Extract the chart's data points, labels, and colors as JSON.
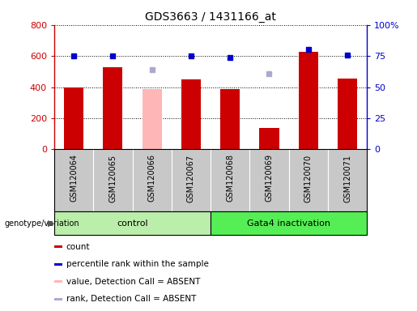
{
  "title": "GDS3663 / 1431166_at",
  "categories": [
    "GSM120064",
    "GSM120065",
    "GSM120066",
    "GSM120067",
    "GSM120068",
    "GSM120069",
    "GSM120070",
    "GSM120071"
  ],
  "count_values": [
    400,
    530,
    null,
    450,
    385,
    135,
    625,
    455
  ],
  "count_absent_values": [
    null,
    null,
    385,
    null,
    null,
    null,
    null,
    null
  ],
  "rank_values": [
    75,
    75,
    null,
    75,
    74,
    null,
    80,
    76
  ],
  "rank_absent_values": [
    null,
    null,
    64,
    null,
    null,
    61,
    null,
    null
  ],
  "control_indices": [
    0,
    1,
    2,
    3
  ],
  "gata4_indices": [
    4,
    5,
    6,
    7
  ],
  "control_label": "control",
  "gata4_label": "Gata4 inactivation",
  "genotype_label": "genotype/variation",
  "ylim_left": [
    0,
    800
  ],
  "ylim_right": [
    0,
    100
  ],
  "yticks_left": [
    0,
    200,
    400,
    600,
    800
  ],
  "yticks_right": [
    0,
    25,
    50,
    75,
    100
  ],
  "ytick_labels_right": [
    "0",
    "25",
    "50",
    "75",
    "100%"
  ],
  "bar_color_red": "#cc0000",
  "bar_color_pink": "#ffb6b6",
  "dot_color_blue": "#0000cc",
  "dot_color_lightblue": "#aaaacc",
  "control_bg": "#bbeeaa",
  "gata4_bg": "#55ee55",
  "tick_area_bg": "#c8c8c8",
  "legend_items": [
    {
      "color": "#cc0000",
      "label": "count"
    },
    {
      "color": "#0000cc",
      "label": "percentile rank within the sample"
    },
    {
      "color": "#ffb6b6",
      "label": "value, Detection Call = ABSENT"
    },
    {
      "color": "#aaaacc",
      "label": "rank, Detection Call = ABSENT"
    }
  ],
  "background_color": "#ffffff"
}
